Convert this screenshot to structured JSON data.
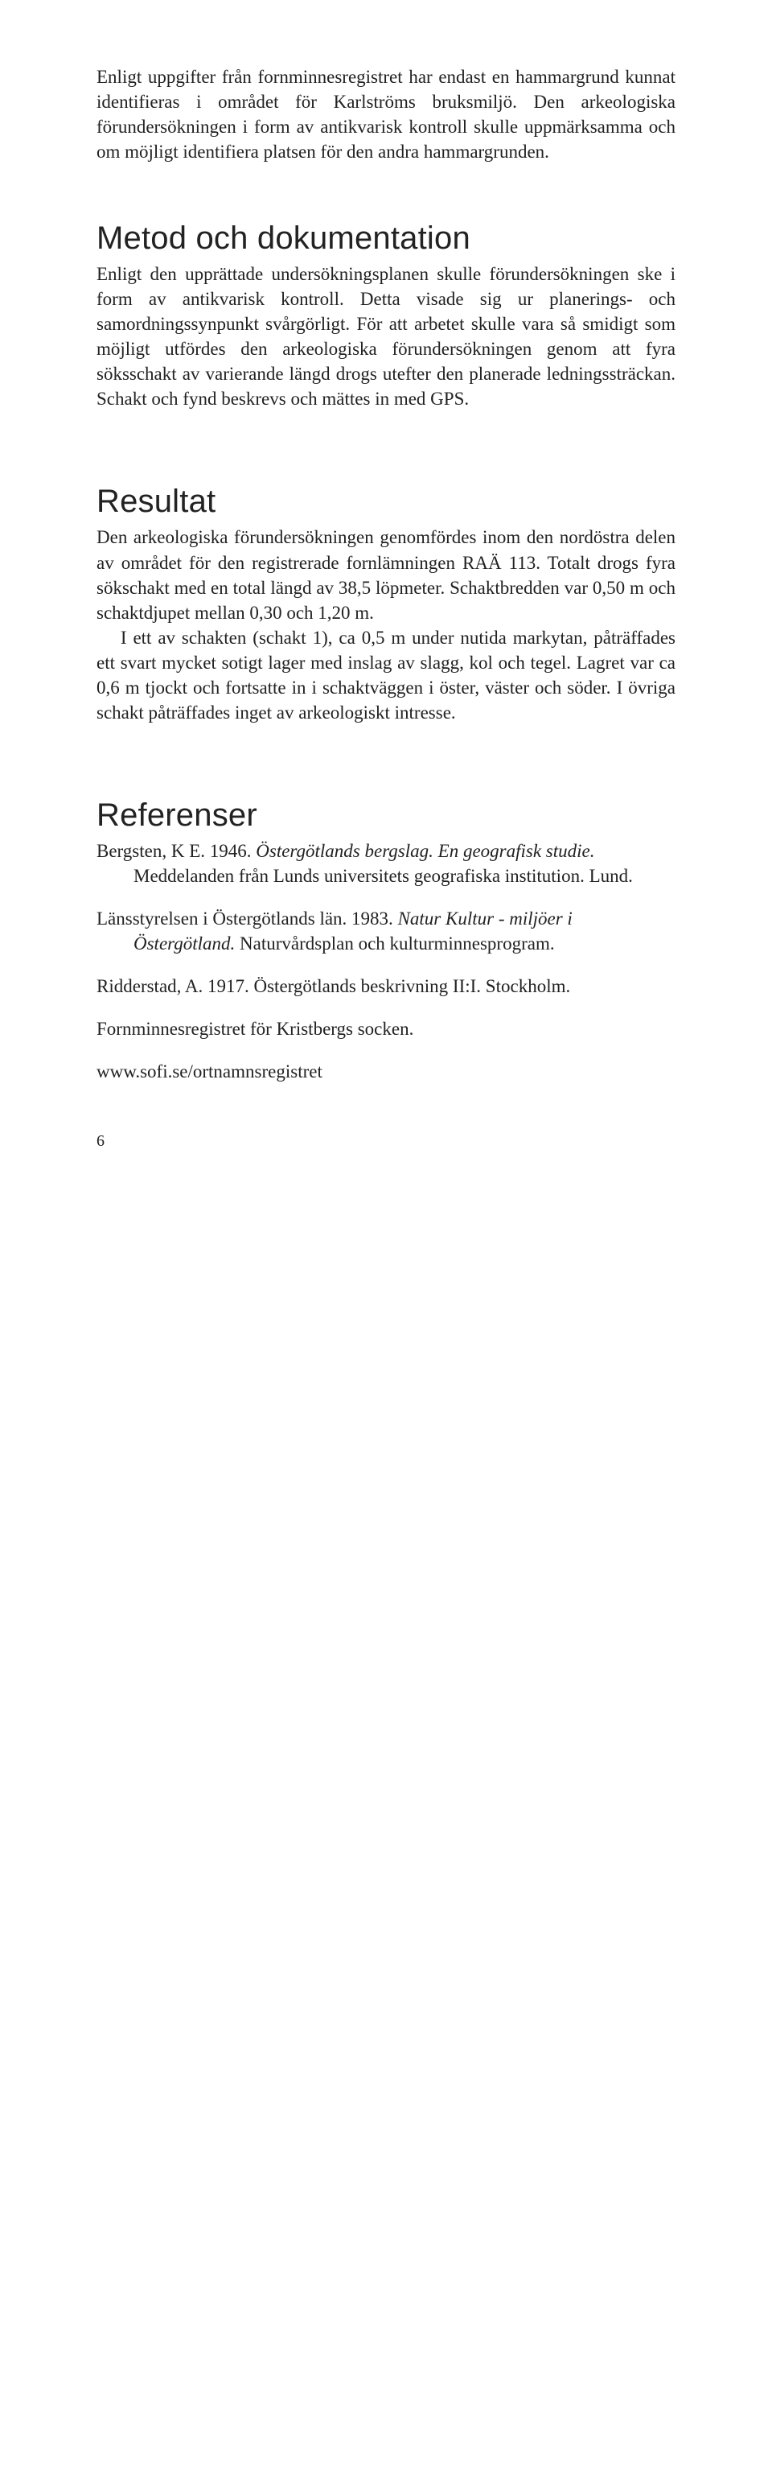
{
  "intro": {
    "p1": "Enligt uppgifter från fornminnesregistret har endast en hammargrund kunnat identifieras i området för Karlströms bruksmiljö. Den arkeologiska förundersökningen i form av antikvarisk kontroll skulle uppmärksamma och om möjligt identifiera platsen för den andra hammargrunden."
  },
  "metod": {
    "heading": "Metod och dokumentation",
    "p1": "Enligt den upprättade undersökningsplanen skulle förundersökningen ske i form av antikvarisk kontroll. Detta visade sig ur planerings- och samordningssynpunkt svårgörligt. För att arbetet skulle vara så smidigt som möjligt utfördes den arkeologiska förundersökningen genom att fyra söksschakt av varierande längd drogs utefter den planerade ledningssträckan. Schakt och fynd beskrevs och mättes in med GPS."
  },
  "resultat": {
    "heading": "Resultat",
    "p1": "Den arkeologiska förundersökningen genomfördes inom den nordöstra delen av området för den registrerade fornlämningen RAÄ 113. Totalt drogs fyra sökschakt med en total längd av 38,5 löpmeter. Schaktbredden var 0,50 m och schaktdjupet mellan 0,30 och 1,20 m.",
    "p2": "I ett av schakten (schakt 1), ca 0,5 m under nutida markytan, påträffades ett svart mycket sotigt lager med inslag av slagg, kol och tegel. Lagret var ca 0,6 m tjockt och fortsatte in i schaktväggen i öster, väster och söder. I övriga schakt påträffades inget av arkeologiskt intresse."
  },
  "refs": {
    "heading": "Referenser",
    "r1a": "Bergsten, K E. 1946. ",
    "r1b": "Östergötlands bergslag. En geografisk studie.",
    "r1c": " Meddelanden från Lunds universitets geografiska institution. Lund.",
    "r2a": "Länsstyrelsen i Östergötlands län. 1983. ",
    "r2b": "Natur Kultur - miljöer i Östergötland.",
    "r2c": " Naturvårdsplan och kulturminnesprogram.",
    "r3a": "Ridderstad, A. 1917. Östergötlands beskrivning II:I. Stockholm.",
    "r4a": "Fornminnesregistret för Kristbergs socken.",
    "r5a": "www.sofi.se/ortnamnsregistret"
  },
  "pagenum": "6"
}
